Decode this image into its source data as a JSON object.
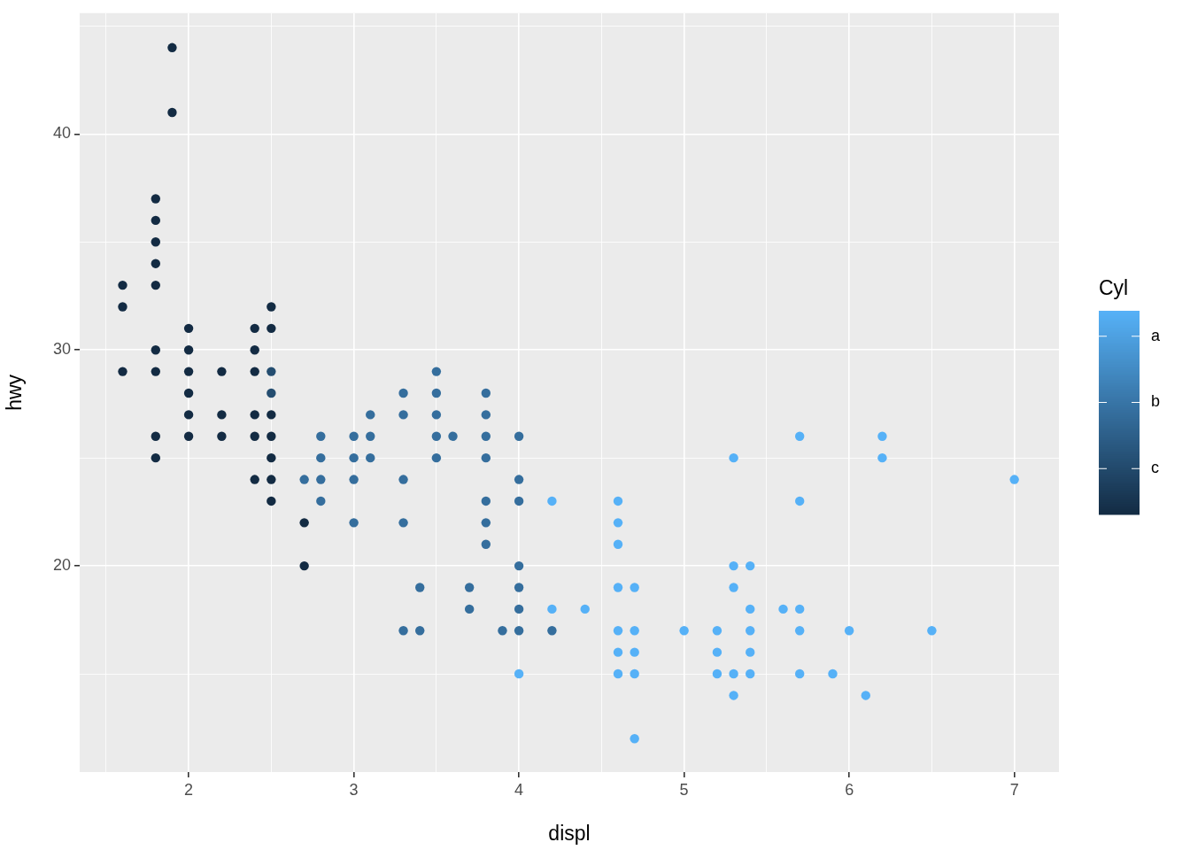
{
  "chart_data": {
    "type": "scatter",
    "xlabel": "displ",
    "ylabel": "hwy",
    "clabel": "Cyl",
    "x": [
      1.9,
      1.9,
      1.8,
      1.8,
      1.8,
      1.8,
      1.8,
      1.8,
      1.8,
      1.8,
      1.8,
      1.6,
      1.6,
      1.6,
      2.0,
      2.0,
      2.0,
      2.0,
      2.0,
      2.0,
      2.2,
      2.2,
      2.2,
      2.4,
      2.4,
      2.4,
      2.4,
      2.4,
      2.4,
      2.5,
      2.5,
      2.5,
      2.5,
      2.5,
      2.5,
      2.5,
      2.7,
      2.7,
      2.5,
      2.5,
      2.7,
      2.8,
      2.8,
      2.8,
      2.8,
      3.0,
      3.0,
      3.0,
      3.0,
      3.1,
      3.1,
      3.1,
      3.3,
      3.3,
      3.3,
      3.3,
      3.3,
      3.4,
      3.4,
      3.5,
      3.5,
      3.5,
      3.5,
      3.5,
      3.6,
      3.7,
      3.7,
      3.8,
      3.8,
      3.8,
      3.8,
      3.8,
      3.8,
      3.8,
      3.9,
      4.0,
      4.0,
      4.0,
      4.0,
      4.0,
      4.0,
      4.0,
      4.2,
      4.0,
      4.2,
      4.2,
      4.4,
      4.6,
      4.6,
      4.6,
      4.6,
      4.6,
      4.6,
      4.6,
      4.7,
      4.7,
      4.7,
      4.7,
      4.7,
      5.0,
      5.2,
      5.2,
      5.2,
      5.3,
      5.3,
      5.3,
      5.3,
      5.3,
      5.4,
      5.4,
      5.4,
      5.4,
      5.4,
      5.6,
      5.7,
      5.7,
      5.7,
      5.7,
      5.7,
      5.9,
      6.0,
      6.1,
      6.2,
      6.2,
      6.5,
      7.0
    ],
    "values": [
      44,
      41,
      37,
      36,
      35,
      34,
      33,
      30,
      29,
      26,
      25,
      33,
      32,
      29,
      31,
      30,
      29,
      28,
      27,
      26,
      29,
      27,
      26,
      31,
      30,
      29,
      27,
      26,
      24,
      32,
      31,
      27,
      26,
      25,
      24,
      23,
      22,
      20,
      29,
      28,
      24,
      26,
      25,
      24,
      23,
      26,
      25,
      24,
      22,
      27,
      26,
      25,
      28,
      27,
      24,
      22,
      17,
      19,
      17,
      29,
      28,
      27,
      26,
      25,
      26,
      19,
      18,
      28,
      27,
      26,
      25,
      23,
      22,
      21,
      17,
      26,
      24,
      23,
      20,
      19,
      18,
      17,
      17,
      15,
      23,
      18,
      18,
      23,
      22,
      21,
      19,
      17,
      16,
      15,
      19,
      17,
      16,
      15,
      12,
      17,
      17,
      16,
      15,
      25,
      20,
      19,
      15,
      14,
      20,
      18,
      17,
      16,
      15,
      18,
      26,
      23,
      18,
      17,
      15,
      15,
      17,
      14,
      26,
      25,
      17,
      24
    ],
    "cvalues": [
      4,
      4,
      4,
      4,
      4,
      4,
      4,
      4,
      4,
      4,
      4,
      4,
      4,
      4,
      4,
      4,
      4,
      4,
      4,
      4,
      4,
      4,
      4,
      4,
      4,
      4,
      4,
      4,
      4,
      4,
      4,
      4,
      4,
      4,
      4,
      4,
      4,
      4,
      5,
      5,
      6,
      6,
      6,
      6,
      6,
      6,
      6,
      6,
      6,
      6,
      6,
      6,
      6,
      6,
      6,
      6,
      6,
      6,
      6,
      6,
      6,
      6,
      6,
      6,
      6,
      6,
      6,
      6,
      6,
      6,
      6,
      6,
      6,
      6,
      6,
      6,
      6,
      6,
      6,
      6,
      6,
      6,
      6,
      8,
      8,
      8,
      8,
      8,
      8,
      8,
      8,
      8,
      8,
      8,
      8,
      8,
      8,
      8,
      8,
      8,
      8,
      8,
      8,
      8,
      8,
      8,
      8,
      8,
      8,
      8,
      8,
      8,
      8,
      8,
      8,
      8,
      8,
      8,
      8,
      8,
      8,
      8,
      8,
      8,
      8,
      8
    ],
    "clim": [
      4,
      8
    ],
    "cticks": [
      {
        "value": 7.5,
        "label": "a"
      },
      {
        "value": 6.2,
        "label": "b"
      },
      {
        "value": 4.9,
        "label": "c"
      }
    ],
    "xlim": [
      1.34,
      7.27
    ],
    "xticks": [
      {
        "value": 1.5,
        "label": null
      },
      2,
      {
        "value": 2.5,
        "label": null
      },
      3,
      {
        "value": 3.5,
        "label": null
      },
      4,
      {
        "value": 4.5,
        "label": null
      },
      5,
      {
        "value": 5.5,
        "label": null
      },
      6,
      {
        "value": 6.5,
        "label": null
      },
      7
    ],
    "ylim": [
      10.45,
      45.6
    ],
    "yticks": [
      {
        "value": 15,
        "label": null
      },
      20,
      {
        "value": 25,
        "label": null
      },
      30,
      {
        "value": 35,
        "label": null
      },
      40,
      {
        "value": 45,
        "label": null
      }
    ],
    "grid": true,
    "legend": false,
    "marker": "circle"
  }
}
